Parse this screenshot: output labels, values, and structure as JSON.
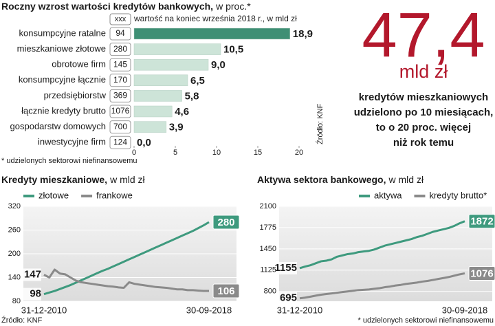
{
  "chart_data": [
    {
      "type": "hbar",
      "title": "Roczny wzrost wartości kredytów bankowych,",
      "subtitle": "w proc.*",
      "legend_box": "xxx",
      "legend_text": "wartość na koniec września 2018 r., w mld zł",
      "categories": [
        "konsumpcyjne ratalne",
        "mieszkaniowe złotowe",
        "obrotowe firm",
        "konsumpcyjne łącznie",
        "przedsiębiorstw",
        "łącznie kredyty brutto",
        "gospodarstw domowych",
        "inwestycyjne firm"
      ],
      "values": [
        18.9,
        10.5,
        9,
        6.5,
        5.8,
        4.6,
        3.9,
        0
      ],
      "value_labels": [
        "18,9",
        "10,5",
        "9,0",
        "6,5",
        "5,8",
        "4,6",
        "3,9",
        "0,0"
      ],
      "amounts": [
        94,
        280,
        145,
        170,
        369,
        1076,
        700,
        124
      ],
      "colors": [
        "#3e8f74",
        "#cde4d8",
        "#cde4d8",
        "#cde4d8",
        "#cde4d8",
        "#cde4d8",
        "#cde4d8",
        "#cde4d8"
      ],
      "xlim": [
        0,
        20
      ],
      "xticks": [
        0,
        5,
        10,
        15,
        20
      ],
      "note": "* udzielonych sektorowi niefinansowemu",
      "source": "Źródło: KNF"
    },
    {
      "type": "line",
      "title": "Kredyty mieszkaniowe,",
      "subtitle": "w mld zł",
      "categories": [
        "31-12-2010",
        null,
        null,
        null,
        null,
        null,
        null,
        null,
        null,
        null,
        null,
        null,
        null,
        null,
        null,
        null,
        null,
        null,
        null,
        null,
        null,
        null,
        null,
        null,
        null,
        null,
        null,
        null,
        null,
        null,
        null,
        "30-09-2018"
      ],
      "series": [
        {
          "name": "złotowe",
          "color": "#3e9a7e",
          "values": [
            98,
            102,
            106,
            111,
            116,
            121,
            127,
            133,
            139,
            145,
            151,
            157,
            162,
            168,
            174,
            180,
            186,
            192,
            198,
            204,
            210,
            216,
            222,
            228,
            234,
            240,
            246,
            252,
            258,
            265,
            272,
            280
          ]
        },
        {
          "name": "frankowe",
          "color": "#8a8a8a",
          "values": [
            147,
            140,
            160,
            150,
            148,
            140,
            132,
            128,
            126,
            124,
            122,
            120,
            118,
            117,
            115,
            114,
            128,
            124,
            122,
            120,
            118,
            116,
            115,
            114,
            112,
            110,
            110,
            108,
            108,
            107,
            106,
            106
          ]
        }
      ],
      "ylim": [
        80,
        320
      ],
      "yticks": [
        80,
        140,
        200,
        260,
        320
      ],
      "grid": true,
      "source": "Źródło: KNF"
    },
    {
      "type": "line",
      "title": "Aktywa sektora bankowego,",
      "subtitle": "w mld zł",
      "categories": [
        "31-12-2010",
        null,
        null,
        null,
        null,
        null,
        null,
        null,
        null,
        null,
        null,
        null,
        null,
        null,
        null,
        null,
        null,
        null,
        null,
        null,
        null,
        null,
        null,
        null,
        null,
        null,
        null,
        null,
        null,
        null,
        null,
        "30-09-2018"
      ],
      "series": [
        {
          "name": "aktywa",
          "color": "#3e9a7e",
          "values": [
            1155,
            1180,
            1200,
            1230,
            1260,
            1270,
            1290,
            1330,
            1350,
            1370,
            1380,
            1400,
            1410,
            1420,
            1440,
            1470,
            1500,
            1520,
            1540,
            1560,
            1580,
            1600,
            1630,
            1650,
            1680,
            1710,
            1730,
            1750,
            1770,
            1800,
            1840,
            1872
          ]
        },
        {
          "name": "kredyty brutto*",
          "color": "#8a8a8a",
          "values": [
            695,
            705,
            720,
            735,
            750,
            760,
            770,
            780,
            790,
            800,
            810,
            820,
            825,
            830,
            840,
            850,
            865,
            875,
            890,
            900,
            915,
            925,
            935,
            950,
            960,
            975,
            990,
            1005,
            1020,
            1040,
            1060,
            1076
          ]
        }
      ],
      "ylim": [
        650,
        2100
      ],
      "yticks": [
        800,
        1125,
        1450,
        1775,
        2100
      ],
      "grid": true,
      "note": "* udzielonych sektorowi niefinansowemu"
    }
  ],
  "highlight": {
    "value": "47,4",
    "unit": "mld zł",
    "lines": [
      "kredytów mieszkaniowych",
      "udzielono po 10 miesiącach,",
      "to o 20 proc. więcej",
      "niż rok temu"
    ]
  }
}
